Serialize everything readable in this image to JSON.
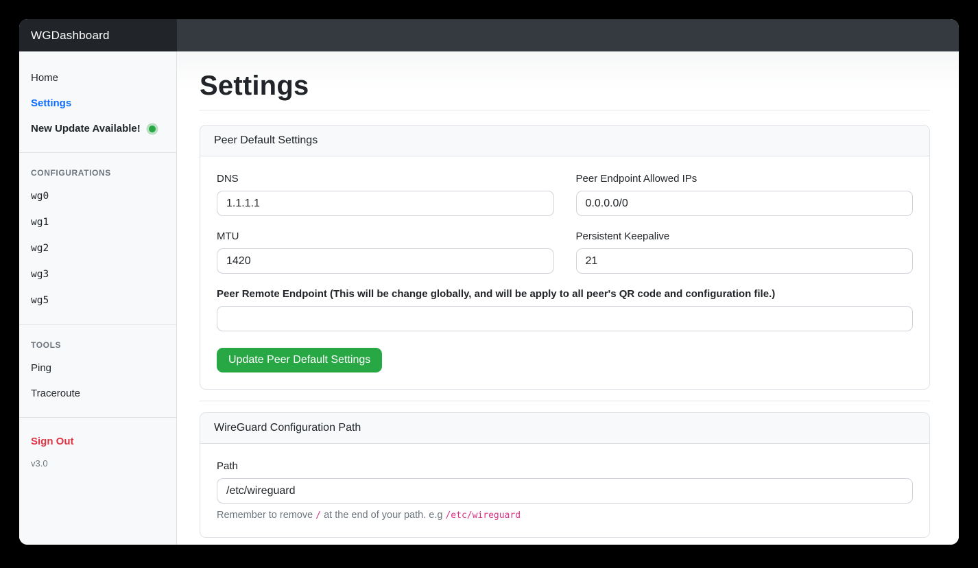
{
  "topbar": {
    "brand": "WGDashboard"
  },
  "sidebar": {
    "nav": {
      "home": "Home",
      "settings": "Settings",
      "update": "New Update Available!"
    },
    "configurations_heading": "CONFIGURATIONS",
    "configurations": [
      "wg0",
      "wg1",
      "wg2",
      "wg3",
      "wg5"
    ],
    "tools_heading": "TOOLS",
    "tools": [
      "Ping",
      "Traceroute"
    ],
    "sign_out": "Sign Out",
    "version": "v3.0"
  },
  "main": {
    "title": "Settings",
    "peer_card": {
      "header": "Peer Default Settings",
      "fields": {
        "dns": {
          "label": "DNS",
          "value": "1.1.1.1"
        },
        "allowed_ips": {
          "label": "Peer Endpoint Allowed IPs",
          "value": "0.0.0.0/0"
        },
        "mtu": {
          "label": "MTU",
          "value": "1420"
        },
        "keepalive": {
          "label": "Persistent Keepalive",
          "value": "21"
        },
        "remote_endpoint": {
          "label": "Peer Remote Endpoint (This will be change globally, and will be apply to all peer's QR code and configuration file.)",
          "value": ""
        }
      },
      "submit_label": "Update Peer Default Settings"
    },
    "path_card": {
      "header": "WireGuard Configuration Path",
      "path": {
        "label": "Path",
        "value": "/etc/wireguard"
      },
      "hint_prefix": "Remember to remove ",
      "hint_code1": "/",
      "hint_middle": " at the end of your path. e.g ",
      "hint_code2": "/etc/wireguard"
    }
  },
  "colors": {
    "navbar_dark": "#343a40",
    "brand_dark": "#212529",
    "accent_blue": "#0d6efd",
    "success_green": "#28a745",
    "danger_red": "#dc3545",
    "code_pink": "#d63384"
  }
}
